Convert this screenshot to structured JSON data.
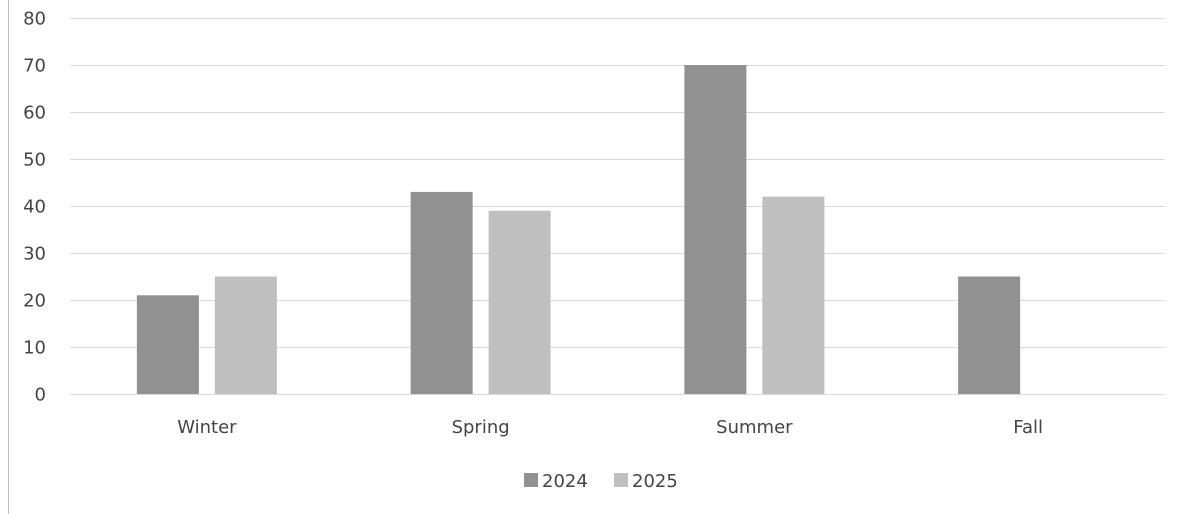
{
  "chart_data": {
    "type": "bar",
    "title": "",
    "xlabel": "",
    "ylabel": "",
    "categories": [
      "Winter",
      "Spring",
      "Summer",
      "Fall"
    ],
    "series": [
      {
        "name": "2024",
        "values": [
          21,
          43,
          70,
          25
        ],
        "color": "#919191"
      },
      {
        "name": "2025",
        "values": [
          25,
          39,
          42,
          null
        ],
        "color": "#bfbfbf"
      }
    ],
    "ylim": [
      0,
      80
    ],
    "yticks": [
      "0",
      "10",
      "20",
      "30",
      "40",
      "50",
      "60",
      "70",
      "80"
    ],
    "grid": true,
    "legend_position": "bottom",
    "gridline_color": "#d9d9d9",
    "border_color": "#bfbfbf"
  }
}
